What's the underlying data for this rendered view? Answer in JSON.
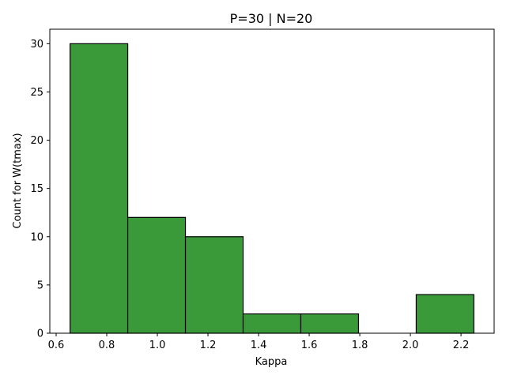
{
  "chart_data": {
    "type": "bar",
    "title": "P=30 | N=20",
    "xlabel": "Kappa",
    "ylabel": "Count for W(tmax)",
    "bins": [
      {
        "x0": 0.655,
        "x1": 0.883,
        "count": 30
      },
      {
        "x0": 0.883,
        "x1": 1.111,
        "count": 12
      },
      {
        "x0": 1.111,
        "x1": 1.339,
        "count": 10
      },
      {
        "x0": 1.339,
        "x1": 1.567,
        "count": 2
      },
      {
        "x0": 1.567,
        "x1": 1.795,
        "count": 2
      },
      {
        "x0": 1.795,
        "x1": 2.023,
        "count": 0
      },
      {
        "x0": 2.023,
        "x1": 2.251,
        "count": 4
      }
    ],
    "xlim": [
      0.575,
      2.331
    ],
    "ylim": [
      0,
      31.5
    ],
    "xticks": [
      "0.6",
      "0.8",
      "1.0",
      "1.2",
      "1.4",
      "1.6",
      "1.8",
      "2.0",
      "2.2"
    ],
    "yticks": [
      "0",
      "5",
      "10",
      "15",
      "20",
      "25",
      "30"
    ],
    "bar_color": "#3a9a3a",
    "edge_color": "#000000",
    "grid": false,
    "legend": "none"
  }
}
